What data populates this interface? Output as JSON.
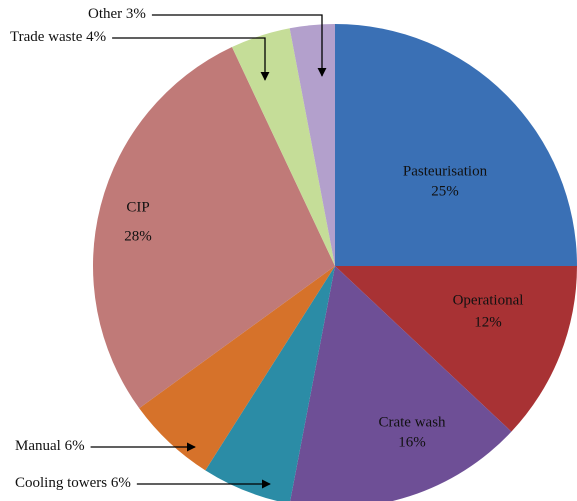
{
  "chart_data": {
    "type": "pie",
    "categories": [
      "Pasteurisation",
      "Operational",
      "Crate wash",
      "Cooling towers",
      "Manual",
      "CIP",
      "Trade waste",
      "Other"
    ],
    "values": [
      25,
      12,
      16,
      6,
      6,
      28,
      4,
      3
    ],
    "value_labels": [
      "25%",
      "12%",
      "16%",
      "6%",
      "6%",
      "28%",
      "4%",
      "3%"
    ],
    "colors": [
      "#3a70b5",
      "#a83234",
      "#6e4f96",
      "#2b8ca6",
      "#d6722a",
      "#c07a78",
      "#c5dd98",
      "#b3a0cc"
    ]
  }
}
